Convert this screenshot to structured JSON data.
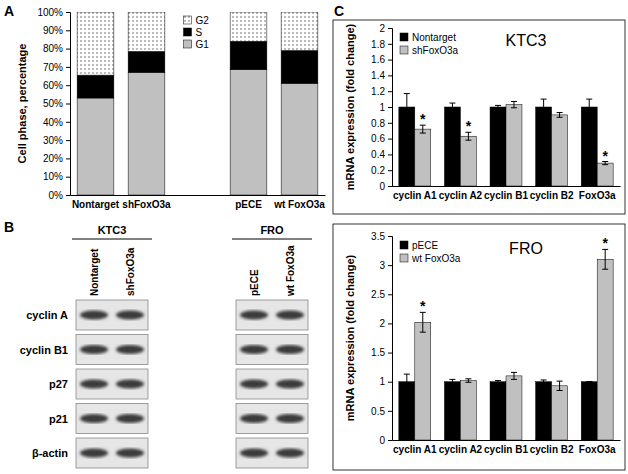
{
  "panel_labels": [
    "A",
    "B",
    "C"
  ],
  "chart_data": [
    {
      "type": "bar",
      "stacked": true,
      "ylabel": "Cell phase, percentage",
      "categories": [
        "Nontarget",
        "shFoxO3a",
        null,
        "pECE",
        "wt FoxO3a"
      ],
      "series": [
        {
          "name": "G1",
          "color": "#c0c0c0",
          "values": [
            53,
            67,
            null,
            68.5,
            61
          ]
        },
        {
          "name": "S",
          "color": "#000000",
          "values": [
            12.5,
            11.5,
            null,
            15.5,
            18
          ]
        },
        {
          "name": "G2",
          "color": "#ffffff",
          "marker": "dots",
          "values": [
            34.5,
            21.5,
            null,
            16,
            21
          ]
        }
      ],
      "ylim": [
        0,
        100
      ],
      "yticks": [
        {
          "value": 0,
          "label": "0%"
        },
        {
          "value": 10,
          "label": "10%"
        },
        {
          "value": 20,
          "label": "20%"
        },
        {
          "value": 30,
          "label": "30%"
        },
        {
          "value": 40,
          "label": "40%"
        },
        {
          "value": 50,
          "label": "50%"
        },
        {
          "value": 60,
          "label": "60%"
        },
        {
          "value": 70,
          "label": "70%"
        },
        {
          "value": 80,
          "label": "80%"
        },
        {
          "value": 90,
          "label": "90%"
        },
        {
          "value": 100,
          "label": "100%"
        }
      ],
      "legend": "top"
    },
    {
      "type": "bar",
      "title": "KTC3",
      "ylabel": "mRNA expression (fold change)",
      "categories": [
        "cyclin A1",
        "cyclin A2",
        "cyclin B1",
        "cyclin B2",
        "FoxO3a"
      ],
      "series": [
        {
          "name": "Nontarget",
          "color": "#000000",
          "values": [
            1,
            1,
            1,
            1,
            1
          ],
          "errors": [
            0.17,
            0.05,
            0.02,
            0.1,
            0.1
          ]
        },
        {
          "name": "shFoxO3a",
          "color": "#c0c0c0",
          "values": [
            0.72,
            0.63,
            1.03,
            0.9,
            0.29
          ],
          "errors": [
            0.05,
            0.05,
            0.04,
            0.03,
            0.02
          ]
        }
      ],
      "ylim": [
        0,
        2
      ],
      "yticks": [
        0,
        0.2,
        0.4,
        0.6,
        0.8,
        1,
        1.2,
        1.4,
        1.6,
        1.8,
        2
      ],
      "legend": "upper left",
      "annotations": [
        {
          "text": "*",
          "category": "cyclin A1",
          "series": "shFoxO3a"
        },
        {
          "text": "*",
          "category": "cyclin A2",
          "series": "shFoxO3a"
        },
        {
          "text": "*",
          "category": "FoxO3a",
          "series": "shFoxO3a"
        }
      ]
    },
    {
      "type": "bar",
      "title": "FRO",
      "ylabel": "mRNA expression (fold change)",
      "categories": [
        "cyclin A1",
        "cyclin A2",
        "cyclin B1",
        "cyclin B2",
        "FoxO3a"
      ],
      "series": [
        {
          "name": "pECE",
          "color": "#000000",
          "values": [
            1,
            1,
            1,
            1,
            1
          ],
          "errors": [
            0.13,
            0.04,
            0.02,
            0.03,
            0
          ]
        },
        {
          "name": "wt FoxO3a",
          "color": "#c0c0c0",
          "values": [
            2.02,
            1.02,
            1.1,
            0.93,
            3.1
          ],
          "errors": [
            0.17,
            0.03,
            0.06,
            0.08,
            0.17
          ]
        }
      ],
      "ylim": [
        0,
        3.5
      ],
      "yticks": [
        0,
        0.5,
        1,
        1.5,
        2,
        2.5,
        3,
        3.5
      ],
      "legend": "upper left",
      "annotations": [
        {
          "text": "*",
          "category": "cyclin A1",
          "series": "wt FoxO3a"
        },
        {
          "text": "*",
          "category": "FoxO3a",
          "series": "wt FoxO3a"
        }
      ]
    }
  ],
  "blot": {
    "groups": [
      {
        "title": "KTC3",
        "lanes": [
          "Nontarget",
          "shFoxO3a"
        ]
      },
      {
        "title": "FRO",
        "lanes": [
          "pECE",
          "wt FoxO3a"
        ]
      }
    ],
    "proteins": [
      "cyclin A",
      "cyclin B1",
      "p27",
      "p21",
      "β-actin"
    ]
  }
}
